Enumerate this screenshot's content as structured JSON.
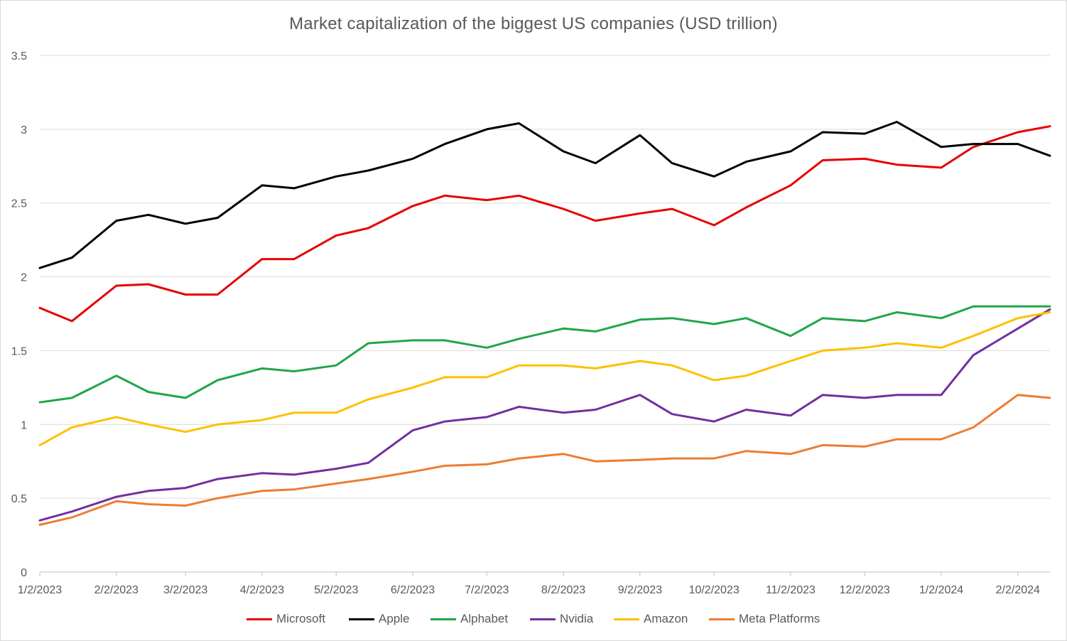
{
  "chart_data": {
    "type": "line",
    "title": "Market capitalization of the biggest US companies (USD trillion)",
    "xlabel": "",
    "ylabel": "",
    "ylim": [
      0,
      3.5
    ],
    "yticks": [
      "0",
      "0.5",
      "1",
      "1.5",
      "2",
      "2.5",
      "3",
      "3.5"
    ],
    "xlim": [
      "2023-01-02",
      "2024-02-15"
    ],
    "xticks": [
      "1/2/2023",
      "2/2/2023",
      "3/2/2023",
      "4/2/2023",
      "5/2/2023",
      "6/2/2023",
      "7/2/2023",
      "8/2/2023",
      "9/2/2023",
      "10/2/2023",
      "11/2/2023",
      "12/2/2023",
      "1/2/2024",
      "2/2/2024"
    ],
    "grid": "horizontal",
    "legend_position": "bottom",
    "x": [
      "2023-01-02",
      "2023-01-15",
      "2023-02-02",
      "2023-02-15",
      "2023-03-02",
      "2023-03-15",
      "2023-04-02",
      "2023-04-15",
      "2023-05-02",
      "2023-05-15",
      "2023-06-02",
      "2023-06-15",
      "2023-07-02",
      "2023-07-15",
      "2023-08-02",
      "2023-08-15",
      "2023-09-02",
      "2023-09-15",
      "2023-10-02",
      "2023-10-15",
      "2023-11-02",
      "2023-11-15",
      "2023-12-02",
      "2023-12-15",
      "2024-01-02",
      "2024-01-15",
      "2024-02-02",
      "2024-02-15"
    ],
    "series": [
      {
        "name": "Microsoft",
        "color": "#e60000",
        "values": [
          1.79,
          1.7,
          1.94,
          1.95,
          1.88,
          1.88,
          2.12,
          2.12,
          2.28,
          2.33,
          2.48,
          2.55,
          2.52,
          2.55,
          2.46,
          2.38,
          2.43,
          2.46,
          2.35,
          2.47,
          2.62,
          2.79,
          2.8,
          2.76,
          2.74,
          2.88,
          2.98,
          3.02
        ]
      },
      {
        "name": "Apple",
        "color": "#000000",
        "values": [
          2.06,
          2.13,
          2.38,
          2.42,
          2.36,
          2.4,
          2.62,
          2.6,
          2.68,
          2.72,
          2.8,
          2.9,
          3.0,
          3.04,
          2.85,
          2.77,
          2.96,
          2.77,
          2.68,
          2.78,
          2.85,
          2.98,
          2.97,
          3.05,
          2.88,
          2.9,
          2.9,
          2.82
        ]
      },
      {
        "name": "Alphabet",
        "color": "#1fa64a",
        "values": [
          1.15,
          1.18,
          1.33,
          1.22,
          1.18,
          1.3,
          1.38,
          1.36,
          1.4,
          1.55,
          1.57,
          1.57,
          1.52,
          1.58,
          1.65,
          1.63,
          1.71,
          1.72,
          1.68,
          1.72,
          1.6,
          1.72,
          1.7,
          1.76,
          1.72,
          1.8,
          1.8,
          1.8
        ]
      },
      {
        "name": "Nvidia",
        "color": "#7030a0",
        "values": [
          0.35,
          0.41,
          0.51,
          0.55,
          0.57,
          0.63,
          0.67,
          0.66,
          0.7,
          0.74,
          0.96,
          1.02,
          1.05,
          1.12,
          1.08,
          1.1,
          1.2,
          1.07,
          1.02,
          1.1,
          1.06,
          1.2,
          1.18,
          1.2,
          1.2,
          1.47,
          1.65,
          1.78
        ]
      },
      {
        "name": "Amazon",
        "color": "#ffc000",
        "values": [
          0.86,
          0.98,
          1.05,
          1.0,
          0.95,
          1.0,
          1.03,
          1.08,
          1.08,
          1.17,
          1.25,
          1.32,
          1.32,
          1.4,
          1.4,
          1.38,
          1.43,
          1.4,
          1.3,
          1.33,
          1.43,
          1.5,
          1.52,
          1.55,
          1.52,
          1.6,
          1.72,
          1.76
        ]
      },
      {
        "name": "Meta Platforms",
        "color": "#ed7d31",
        "values": [
          0.32,
          0.37,
          0.48,
          0.46,
          0.45,
          0.5,
          0.55,
          0.56,
          0.6,
          0.63,
          0.68,
          0.72,
          0.73,
          0.77,
          0.8,
          0.75,
          0.76,
          0.77,
          0.77,
          0.82,
          0.8,
          0.86,
          0.85,
          0.9,
          0.9,
          0.98,
          1.2,
          1.18
        ]
      }
    ]
  }
}
